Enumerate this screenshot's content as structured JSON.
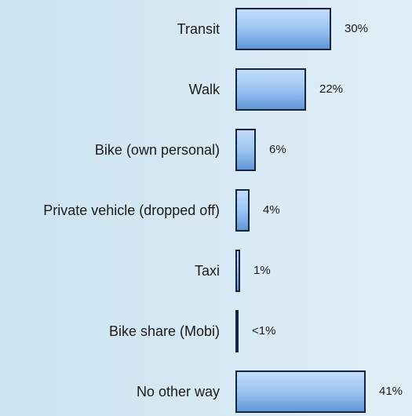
{
  "chart_data": {
    "type": "barh",
    "categories": [
      "Transit",
      "Walk",
      "Bike (own personal)",
      "Private vehicle (dropped off)",
      "Taxi",
      "Bike share (Mobi)",
      "No other way"
    ],
    "values": [
      30,
      22,
      6,
      4,
      1,
      0.5,
      41
    ],
    "value_labels": [
      "30%",
      "22%",
      "6%",
      "4%",
      "1%",
      "<1%",
      "41%"
    ],
    "xlim": [
      0,
      55
    ],
    "color": "#8dbcf0"
  }
}
